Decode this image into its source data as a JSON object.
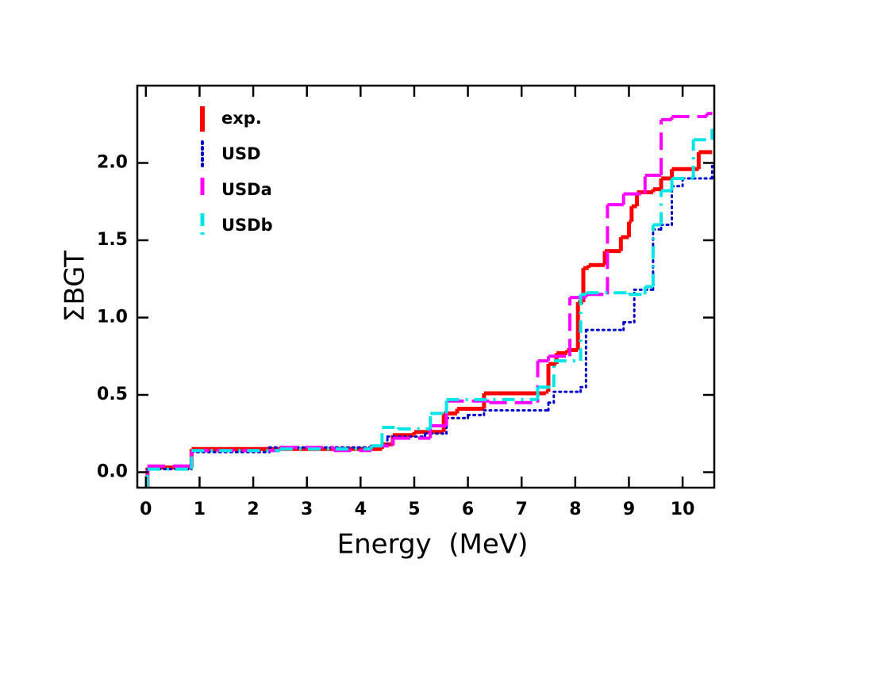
{
  "chart_data": {
    "type": "step",
    "x_label": "Energy  (MeV)",
    "y_label": "ΣBGT",
    "xlim": [
      -0.16,
      10.59
    ],
    "ylim": [
      -0.1,
      2.5
    ],
    "xticks": [
      0,
      1,
      2,
      3,
      4,
      5,
      6,
      7,
      8,
      9,
      10
    ],
    "yticks": [
      {
        "value": 0,
        "label": "0.0"
      },
      0.5,
      {
        "value": 1,
        "label": "1.0"
      },
      1.5,
      {
        "value": 2,
        "label": "2.0"
      }
    ],
    "legend": "upper left",
    "series": [
      {
        "name": "exp.",
        "color": "#ff0000",
        "line_style": "solid",
        "line_width": 5,
        "x": [
          0.03,
          0.85,
          4.4,
          4.6,
          5.0,
          5.55,
          5.8,
          6.3,
          7.45,
          7.5,
          7.65,
          7.85,
          8.05,
          8.15,
          8.25,
          8.55,
          8.85,
          9.0,
          9.05,
          9.15,
          9.45,
          9.6,
          9.8,
          10.3,
          10.55
        ],
        "values": [
          0.03,
          0.15,
          0.18,
          0.24,
          0.26,
          0.38,
          0.41,
          0.51,
          0.52,
          0.7,
          0.77,
          0.79,
          1.1,
          1.32,
          1.34,
          1.43,
          1.52,
          1.62,
          1.72,
          1.81,
          1.83,
          1.9,
          1.96,
          2.07,
          2.07
        ]
      },
      {
        "name": "USD",
        "color": "#0000cc",
        "line_style": "dotted",
        "line_width": 3,
        "x": [
          0.03,
          0.85,
          2.3,
          4.2,
          4.5,
          5.2,
          5.6,
          6.0,
          6.3,
          7.5,
          7.6,
          8.1,
          8.2,
          8.9,
          9.1,
          9.45,
          9.6,
          9.8,
          10.0,
          10.55
        ],
        "values": [
          0.02,
          0.13,
          0.16,
          0.17,
          0.23,
          0.25,
          0.35,
          0.37,
          0.4,
          0.45,
          0.52,
          0.55,
          0.92,
          0.97,
          1.18,
          1.57,
          1.6,
          1.85,
          1.9,
          1.98
        ]
      },
      {
        "name": "USDa",
        "color": "#ff00ff",
        "line_style": "dashed",
        "line_width": 4,
        "x": [
          0.03,
          0.85,
          2.5,
          3.5,
          4.2,
          4.6,
          5.3,
          5.6,
          6.4,
          7.3,
          7.5,
          7.9,
          8.2,
          8.6,
          8.9,
          9.3,
          9.6,
          9.8,
          10.45,
          10.55
        ],
        "values": [
          0.04,
          0.14,
          0.16,
          0.14,
          0.17,
          0.22,
          0.3,
          0.46,
          0.45,
          0.72,
          0.75,
          1.13,
          1.15,
          1.73,
          1.8,
          1.92,
          2.28,
          2.3,
          2.32,
          2.32
        ]
      },
      {
        "name": "USDb",
        "color": "#00e5e5",
        "line_style": "dashdot",
        "line_width": 4,
        "x": [
          0.03,
          0.85,
          2.5,
          4.2,
          4.4,
          4.7,
          5.3,
          5.6,
          7.3,
          7.6,
          8.1,
          8.2,
          9.0,
          9.3,
          9.45,
          9.6,
          9.8,
          10.2,
          10.55
        ],
        "values": [
          0.02,
          0.14,
          0.15,
          0.17,
          0.29,
          0.28,
          0.38,
          0.47,
          0.55,
          0.72,
          1.15,
          1.16,
          1.15,
          1.2,
          1.6,
          1.82,
          1.9,
          2.15,
          2.22
        ]
      }
    ]
  }
}
